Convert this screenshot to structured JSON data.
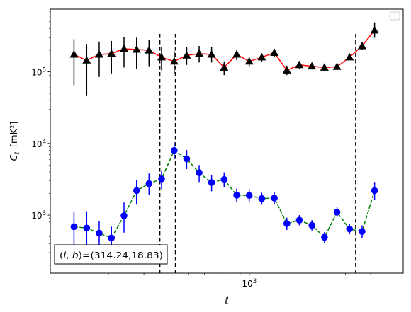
{
  "chart_data": {
    "type": "scatter",
    "scale": {
      "x": "log",
      "y": "log"
    },
    "xlim": [
      103,
      5800
    ],
    "ylim": [
      155,
      750000
    ],
    "xlabel": "ℓ",
    "ylabel": "C_ℓ [mK²]",
    "x_major_tick_labels": [
      {
        "value": 1000,
        "base": "10",
        "exp": "3"
      }
    ],
    "y_major_tick_labels": [
      {
        "value": 1000,
        "base": "10",
        "exp": "3"
      },
      {
        "value": 10000,
        "base": "10",
        "exp": "4"
      },
      {
        "value": 100000,
        "base": "10",
        "exp": "5"
      }
    ],
    "annotation": "(l, b)=(314.24,18.83)",
    "legend": {
      "placement": "top-right",
      "entries": []
    },
    "vlines": [
      360,
      430,
      3370
    ],
    "series": [
      {
        "marker": "triangle",
        "line_style": "solid",
        "line_color": "#ff0000",
        "marker_color": "#000000",
        "points": [
          {
            "x": 135,
            "y": 175000,
            "lo": 65000,
            "hi": 285000
          },
          {
            "x": 156,
            "y": 145000,
            "lo": 47000,
            "hi": 245000
          },
          {
            "x": 180,
            "y": 175000,
            "lo": 85000,
            "hi": 265000
          },
          {
            "x": 207,
            "y": 180000,
            "lo": 95000,
            "hi": 270000
          },
          {
            "x": 239,
            "y": 210000,
            "lo": 115000,
            "hi": 305000
          },
          {
            "x": 276,
            "y": 205000,
            "lo": 110000,
            "hi": 300000
          },
          {
            "x": 318,
            "y": 200000,
            "lo": 120000,
            "hi": 280000
          },
          {
            "x": 367,
            "y": 160000,
            "lo": 105000,
            "hi": 220000
          },
          {
            "x": 424,
            "y": 140000,
            "lo": 95000,
            "hi": 195000
          },
          {
            "x": 489,
            "y": 170000,
            "lo": 125000,
            "hi": 220000
          },
          {
            "x": 564,
            "y": 180000,
            "lo": 135000,
            "hi": 230000
          },
          {
            "x": 650,
            "y": 175000,
            "lo": 135000,
            "hi": 220000
          },
          {
            "x": 750,
            "y": 115000,
            "lo": 90000,
            "hi": 140000
          },
          {
            "x": 866,
            "y": 175000,
            "lo": 145000,
            "hi": 205000
          },
          {
            "x": 999,
            "y": 140000,
            "lo": 120000,
            "hi": 160000
          },
          {
            "x": 1153,
            "y": 160000,
            "lo": 140000,
            "hi": 180000
          },
          {
            "x": 1330,
            "y": 185000,
            "lo": 160000,
            "hi": 210000
          },
          {
            "x": 1535,
            "y": 105000,
            "lo": 90000,
            "hi": 122000
          },
          {
            "x": 1771,
            "y": 125000,
            "lo": 110000,
            "hi": 140000
          },
          {
            "x": 2044,
            "y": 120000,
            "lo": 108000,
            "hi": 133000
          },
          {
            "x": 2359,
            "y": 115000,
            "lo": 104000,
            "hi": 127000
          },
          {
            "x": 2722,
            "y": 118000,
            "lo": 107000,
            "hi": 130000
          },
          {
            "x": 3141,
            "y": 160000,
            "lo": 145000,
            "hi": 175000
          },
          {
            "x": 3625,
            "y": 230000,
            "lo": 205000,
            "hi": 260000
          },
          {
            "x": 4183,
            "y": 380000,
            "lo": 300000,
            "hi": 490000
          }
        ]
      },
      {
        "marker": "circle",
        "line_style": "dashed",
        "line_color": "#008000",
        "marker_color": "#0000ff",
        "points": [
          {
            "x": 135,
            "y": 690,
            "lo": 300,
            "hi": 1130
          },
          {
            "x": 156,
            "y": 660,
            "lo": 300,
            "hi": 1130
          },
          {
            "x": 180,
            "y": 560,
            "lo": 320,
            "hi": 830
          },
          {
            "x": 207,
            "y": 480,
            "lo": 310,
            "hi": 690
          },
          {
            "x": 239,
            "y": 980,
            "lo": 570,
            "hi": 1500
          },
          {
            "x": 276,
            "y": 2200,
            "lo": 1400,
            "hi": 3100
          },
          {
            "x": 318,
            "y": 2750,
            "lo": 1900,
            "hi": 3800
          },
          {
            "x": 367,
            "y": 3200,
            "lo": 2300,
            "hi": 4200
          },
          {
            "x": 424,
            "y": 8000,
            "lo": 6000,
            "hi": 10300
          },
          {
            "x": 489,
            "y": 6100,
            "lo": 4400,
            "hi": 8100
          },
          {
            "x": 564,
            "y": 3900,
            "lo": 2900,
            "hi": 5000
          },
          {
            "x": 650,
            "y": 2850,
            "lo": 2150,
            "hi": 3650
          },
          {
            "x": 750,
            "y": 3150,
            "lo": 2450,
            "hi": 3950
          },
          {
            "x": 866,
            "y": 1900,
            "lo": 1500,
            "hi": 2350
          },
          {
            "x": 999,
            "y": 1880,
            "lo": 1500,
            "hi": 2300
          },
          {
            "x": 1153,
            "y": 1700,
            "lo": 1400,
            "hi": 2050
          },
          {
            "x": 1330,
            "y": 1730,
            "lo": 1400,
            "hi": 2100
          },
          {
            "x": 1535,
            "y": 760,
            "lo": 620,
            "hi": 920
          },
          {
            "x": 1771,
            "y": 850,
            "lo": 720,
            "hi": 1000
          },
          {
            "x": 2044,
            "y": 720,
            "lo": 610,
            "hi": 850
          },
          {
            "x": 2359,
            "y": 490,
            "lo": 410,
            "hi": 580
          },
          {
            "x": 2722,
            "y": 1100,
            "lo": 950,
            "hi": 1280
          },
          {
            "x": 3141,
            "y": 640,
            "lo": 540,
            "hi": 750
          },
          {
            "x": 3625,
            "y": 590,
            "lo": 480,
            "hi": 720
          },
          {
            "x": 4183,
            "y": 2200,
            "lo": 1650,
            "hi": 2900
          }
        ]
      }
    ]
  }
}
